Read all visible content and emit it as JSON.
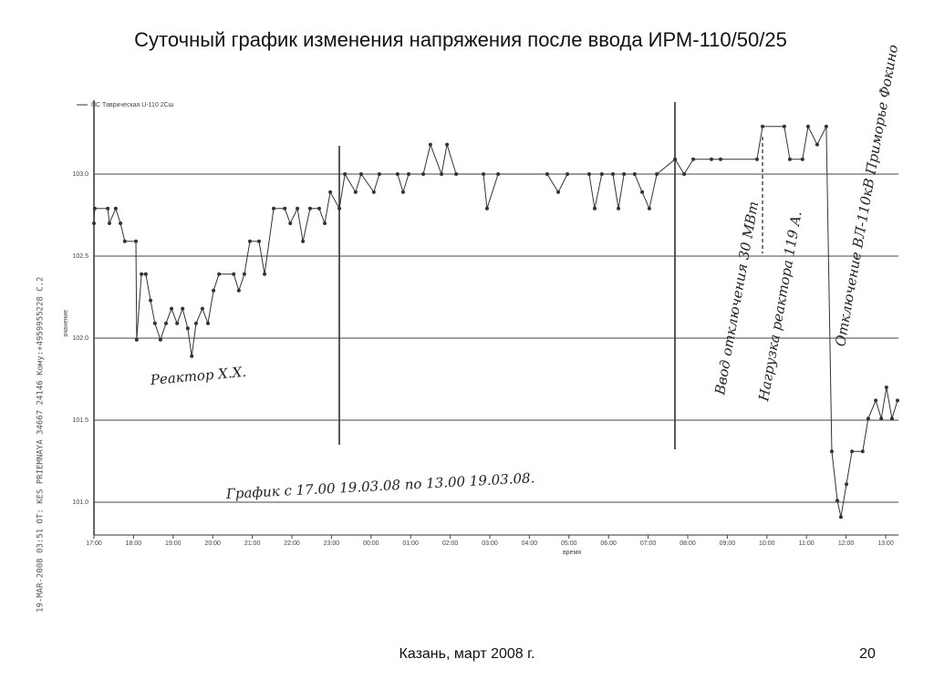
{
  "header": {
    "title": "Суточный график изменения напряжения после ввода ИРМ-110/50/25"
  },
  "chart_data": {
    "type": "line",
    "legend_label": "ПС Таврическая U-110 2Сш",
    "xlabel": "время",
    "ylabel": "значение",
    "fax_header": "19-MAR-2008 03:51  ОТ: KES PRIEMNAYA  34667 24146  Кому:+4959955228  С.2",
    "x": [
      17.0,
      17.02,
      17.35,
      17.39,
      17.55,
      17.67,
      17.78,
      18.06,
      18.08,
      18.2,
      18.31,
      18.43,
      18.54,
      18.68,
      18.82,
      18.96,
      19.1,
      19.24,
      19.37,
      19.47,
      19.58,
      19.74,
      19.88,
      20.02,
      20.16,
      20.53,
      20.66,
      20.8,
      20.94,
      21.17,
      21.31,
      21.54,
      21.82,
      21.96,
      22.14,
      22.28,
      22.46,
      22.69,
      22.83,
      22.97,
      23.2,
      23.34,
      23.61,
      23.75,
      24.07,
      24.21,
      24.67,
      24.81,
      24.95,
      25.32,
      25.5,
      25.78,
      25.92,
      26.15,
      26.84,
      26.93,
      27.21,
      28.45,
      28.73,
      28.96,
      29.51,
      29.65,
      29.83,
      30.11,
      30.25,
      30.39,
      30.66,
      30.85,
      31.03,
      31.22,
      31.68,
      31.91,
      32.14,
      32.6,
      32.83,
      33.75,
      33.89,
      34.44,
      34.58,
      34.9,
      35.04,
      35.27,
      35.5,
      35.64,
      35.78,
      35.87,
      36.01,
      36.15,
      36.42,
      36.56,
      36.75,
      36.89,
      37.02,
      37.16,
      37.3
    ],
    "series": [
      {
        "name": "ПС Таврическая U-110 2Сш",
        "color": "#333333",
        "values": [
          102.7,
          102.79,
          102.79,
          102.7,
          102.79,
          102.7,
          102.59,
          102.59,
          101.99,
          102.39,
          102.39,
          102.23,
          102.09,
          101.99,
          102.09,
          102.18,
          102.09,
          102.18,
          102.06,
          101.89,
          102.09,
          102.18,
          102.09,
          102.29,
          102.39,
          102.39,
          102.29,
          102.39,
          102.59,
          102.59,
          102.39,
          102.79,
          102.79,
          102.7,
          102.79,
          102.59,
          102.79,
          102.79,
          102.7,
          102.89,
          102.79,
          103.0,
          102.89,
          103.0,
          102.89,
          103.0,
          103.0,
          102.89,
          103.0,
          103.0,
          103.18,
          103.0,
          103.18,
          103.0,
          103.0,
          102.79,
          103.0,
          103.0,
          102.89,
          103.0,
          103.0,
          102.79,
          103.0,
          103.0,
          102.79,
          103.0,
          103.0,
          102.89,
          102.79,
          103.0,
          103.09,
          103.0,
          103.09,
          103.09,
          103.09,
          103.09,
          103.29,
          103.29,
          103.09,
          103.09,
          103.29,
          103.18,
          103.29,
          101.31,
          101.01,
          100.91,
          101.11,
          101.31,
          101.31,
          101.51,
          101.62,
          101.51,
          101.7,
          101.51,
          101.62
        ]
      }
    ],
    "xlim": [
      17,
      37.3
    ],
    "xticks": [
      {
        "value": 17,
        "label": "17:00"
      },
      {
        "value": 18,
        "label": "18:00"
      },
      {
        "value": 19,
        "label": "19:00"
      },
      {
        "value": 20,
        "label": "20:00"
      },
      {
        "value": 21,
        "label": "21:00"
      },
      {
        "value": 22,
        "label": "22:00"
      },
      {
        "value": 23,
        "label": "23:00"
      },
      {
        "value": 24,
        "label": "00:00"
      },
      {
        "value": 25,
        "label": "01:00"
      },
      {
        "value": 26,
        "label": "02:00"
      },
      {
        "value": 27,
        "label": "03:00"
      },
      {
        "value": 28,
        "label": "04:00"
      },
      {
        "value": 29,
        "label": "05:00"
      },
      {
        "value": 30,
        "label": "06:00"
      },
      {
        "value": 31,
        "label": "07:00"
      },
      {
        "value": 32,
        "label": "08:00"
      },
      {
        "value": 33,
        "label": "09:00"
      },
      {
        "value": 34,
        "label": "10:00"
      },
      {
        "value": 35,
        "label": "11:00"
      },
      {
        "value": 36,
        "label": "12:00"
      },
      {
        "value": 37,
        "label": "13:00"
      }
    ],
    "ylim": [
      100.8,
      103.45
    ],
    "yticks": [
      {
        "value": 103,
        "label": "103.0"
      },
      {
        "value": 102.5,
        "label": "102.5"
      },
      {
        "value": 102,
        "label": "102.0"
      },
      {
        "value": 101.5,
        "label": "101.5"
      },
      {
        "value": 101,
        "label": "101.0"
      }
    ],
    "grid": true,
    "annotations": [
      "Реактор Х.Х.",
      "График с 17.00 19.03.08 по 13.00 19.03.08.",
      "Ввод отключения 30 МВт",
      "Нагрузка реактора 119 А.",
      "Отключение ВЛ-110кВ Приморье Фокино"
    ]
  },
  "footer": {
    "text": "Казань, март 2008 г.",
    "page": 20
  }
}
